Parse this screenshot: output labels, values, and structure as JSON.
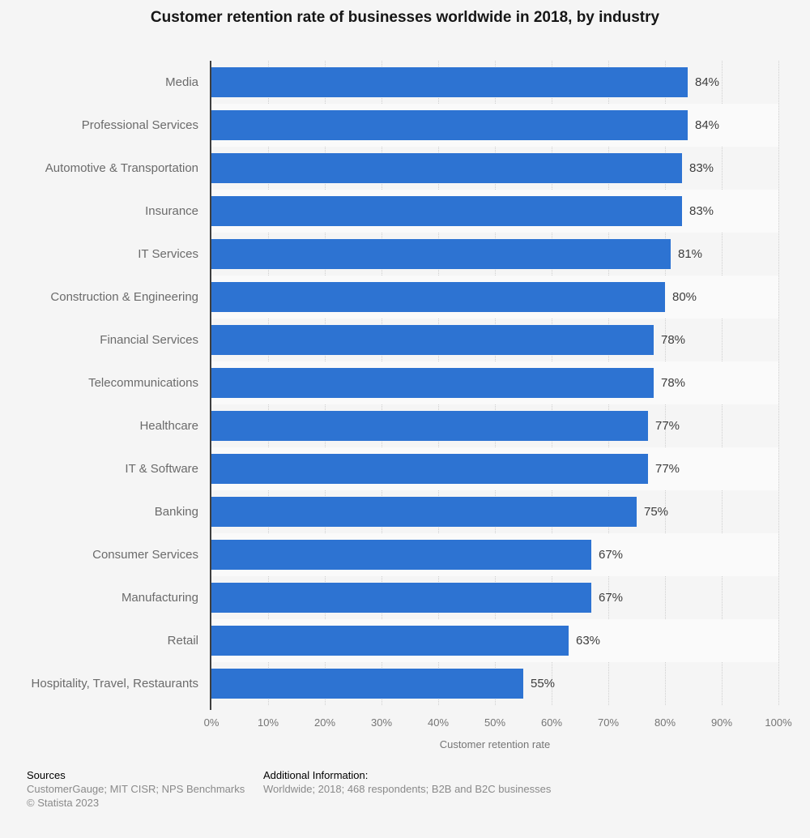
{
  "title": "Customer retention rate of businesses worldwide in 2018, by industry",
  "chart_data": {
    "type": "bar",
    "orientation": "horizontal",
    "title": "Customer retention rate of businesses worldwide in 2018, by industry",
    "categories": [
      "Media",
      "Professional Services",
      "Automotive & Transportation",
      "Insurance",
      "IT Services",
      "Construction & Engineering",
      "Financial Services",
      "Telecommunications",
      "Healthcare",
      "IT & Software",
      "Banking",
      "Consumer Services",
      "Manufacturing",
      "Retail",
      "Hospitality, Travel, Restaurants"
    ],
    "values": [
      84,
      84,
      83,
      83,
      81,
      80,
      78,
      78,
      77,
      77,
      75,
      67,
      67,
      63,
      55
    ],
    "value_suffix": "%",
    "xlabel": "Customer retention rate",
    "ylabel": "",
    "xlim": [
      0,
      100
    ],
    "xticks": [
      "0%",
      "10%",
      "20%",
      "30%",
      "40%",
      "50%",
      "60%",
      "70%",
      "80%",
      "90%",
      "100%"
    ],
    "grid": "vertical-dotted",
    "legend": "none",
    "bar_color": "#2d73d2",
    "band_color": "#fafafa",
    "background_color": "#f5f5f5",
    "axis_color": "#3f3f3f",
    "grid_color": "#cfcfcf"
  },
  "footer": {
    "sources_heading": "Sources",
    "sources_line1": "CustomerGauge; MIT CISR; NPS Benchmarks",
    "sources_line2": "© Statista 2023",
    "additional_heading": "Additional Information:",
    "additional_line1": "Worldwide; 2018; 468 respondents; B2B and B2C businesses"
  }
}
